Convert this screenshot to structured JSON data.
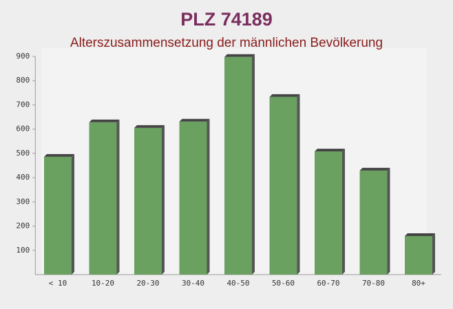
{
  "chart_data": {
    "type": "bar",
    "title": "PLZ 74189",
    "subtitle": "Alterszusammensetzung der männlichen Bevölkerung",
    "categories": [
      "< 10",
      "10-20",
      "20-30",
      "30-40",
      "40-50",
      "50-60",
      "60-70",
      "70-80",
      "80+"
    ],
    "values": [
      486,
      628,
      605,
      631,
      898,
      733,
      508,
      429,
      159
    ],
    "color": "#6aa060",
    "ylim": [
      0,
      900
    ],
    "yticks": [
      100,
      200,
      300,
      400,
      500,
      600,
      700,
      800,
      900
    ],
    "grid": false
  }
}
